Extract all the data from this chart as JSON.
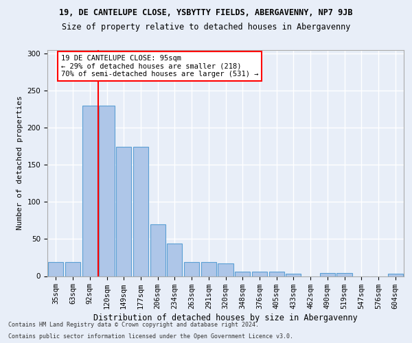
{
  "title1": "19, DE CANTELUPE CLOSE, YSBYTTY FIELDS, ABERGAVENNY, NP7 9JB",
  "title2": "Size of property relative to detached houses in Abergavenny",
  "xlabel": "Distribution of detached houses by size in Abergavenny",
  "ylabel": "Number of detached properties",
  "categories": [
    "35sqm",
    "63sqm",
    "92sqm",
    "120sqm",
    "149sqm",
    "177sqm",
    "206sqm",
    "234sqm",
    "263sqm",
    "291sqm",
    "320sqm",
    "348sqm",
    "376sqm",
    "405sqm",
    "433sqm",
    "462sqm",
    "490sqm",
    "519sqm",
    "547sqm",
    "576sqm",
    "604sqm"
  ],
  "values": [
    19,
    19,
    230,
    230,
    174,
    174,
    70,
    44,
    19,
    19,
    17,
    6,
    6,
    6,
    3,
    0,
    4,
    4,
    0,
    0,
    3
  ],
  "bar_color": "#aec6e8",
  "bar_edge_color": "#5a9fd4",
  "vline_x_idx": 2,
  "vline_color": "red",
  "annotation_text": "19 DE CANTELUPE CLOSE: 95sqm\n← 29% of detached houses are smaller (218)\n70% of semi-detached houses are larger (531) →",
  "annotation_box_color": "white",
  "annotation_box_edge_color": "red",
  "footnote1": "Contains HM Land Registry data © Crown copyright and database right 2024.",
  "footnote2": "Contains public sector information licensed under the Open Government Licence v3.0.",
  "ylim": [
    0,
    305
  ],
  "background_color": "#e8eef8",
  "grid_color": "white"
}
